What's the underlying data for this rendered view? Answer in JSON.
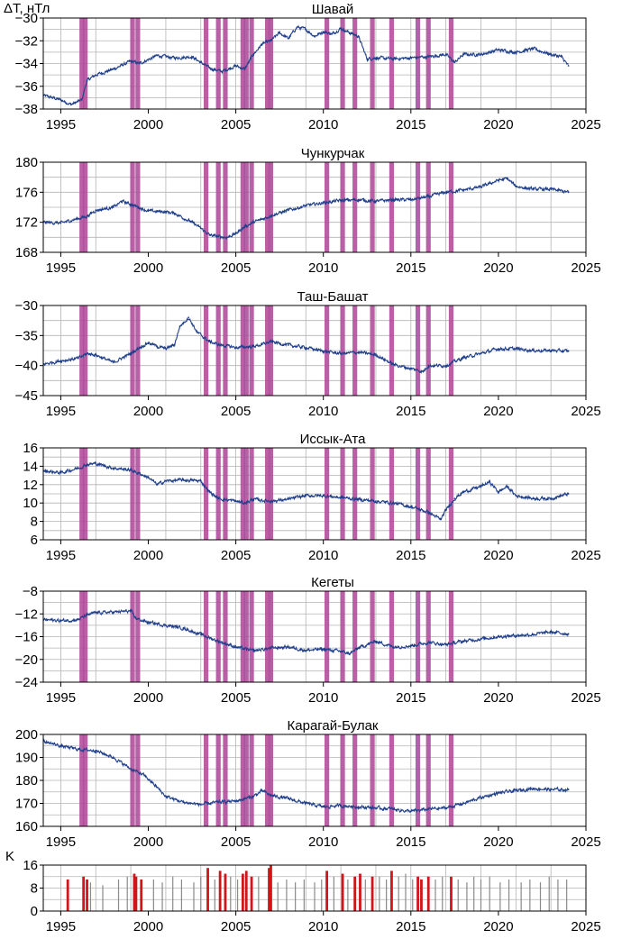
{
  "corner_labels": {
    "top": "ΔT, нТл",
    "bottom": "K"
  },
  "colors": {
    "series": "#1f3f8c",
    "storm_band": "#b04a9a",
    "k_normal": "#8a8a8a",
    "k_storm": "#d0151b",
    "grid": "#b4b4b4",
    "axis": "#000000"
  },
  "chart_data": [
    {
      "type": "line",
      "title": "Шавай",
      "xlim": [
        1994,
        2025
      ],
      "xticks": [
        1995,
        2000,
        2005,
        2010,
        2015,
        2020,
        2025
      ],
      "ylim": [
        -38,
        -30
      ],
      "yticks": [
        -38,
        -36,
        -34,
        -32,
        -30
      ],
      "grid": true,
      "series": [
        {
          "x": [
            1994.0,
            1995.0,
            1995.6,
            1996.2,
            1996.5,
            1997.0,
            1998.0,
            1999.0,
            1999.5,
            2000.5,
            2001.5,
            2002.5,
            2003.0,
            2003.5,
            2004.2,
            2005.0,
            2005.5,
            2006.0,
            2006.5,
            2007.0,
            2007.5,
            2008.0,
            2008.5,
            2009.0,
            2009.5,
            2010.0,
            2010.5,
            2011.0,
            2011.5,
            2012.0,
            2012.5,
            2013.0,
            2014.0,
            2015.0,
            2016.0,
            2017.0,
            2017.5,
            2018.0,
            2019.0,
            2020.0,
            2021.0,
            2022.0,
            2023.0,
            2023.6,
            2024.0
          ],
          "y": [
            -36.8,
            -37.2,
            -37.6,
            -37.2,
            -35.5,
            -35.0,
            -34.5,
            -33.8,
            -34.0,
            -33.3,
            -33.5,
            -33.4,
            -33.9,
            -34.4,
            -34.7,
            -34.2,
            -34.5,
            -33.2,
            -32.3,
            -32.0,
            -31.3,
            -31.8,
            -30.8,
            -31.0,
            -31.6,
            -31.2,
            -31.4,
            -30.9,
            -31.3,
            -31.6,
            -33.6,
            -33.5,
            -33.6,
            -33.5,
            -33.4,
            -33.2,
            -33.9,
            -33.2,
            -33.2,
            -32.8,
            -33.0,
            -32.7,
            -33.2,
            -33.4,
            -34.2
          ]
        }
      ]
    },
    {
      "type": "line",
      "title": "Чункурчак",
      "xlim": [
        1994,
        2025
      ],
      "xticks": [
        1995,
        2000,
        2005,
        2010,
        2015,
        2020,
        2025
      ],
      "ylim": [
        168,
        180
      ],
      "yticks": [
        168,
        172,
        176,
        180
      ],
      "grid": true,
      "series": [
        {
          "x": [
            1994.0,
            1995.0,
            1996.0,
            1996.5,
            1997.0,
            1998.0,
            1998.5,
            1999.0,
            2000.0,
            2001.0,
            2001.5,
            2002.5,
            2003.0,
            2003.5,
            2004.0,
            2004.5,
            2005.0,
            2005.5,
            2006.0,
            2006.5,
            2007.0,
            2008.0,
            2009.0,
            2010.0,
            2011.0,
            2012.0,
            2013.0,
            2014.0,
            2015.0,
            2015.5,
            2016.0,
            2017.0,
            2018.0,
            2019.0,
            2020.0,
            2020.5,
            2021.0,
            2022.0,
            2023.0,
            2024.0
          ],
          "y": [
            172.0,
            171.9,
            172.5,
            172.8,
            173.6,
            174.0,
            174.8,
            174.4,
            173.5,
            173.4,
            173.2,
            172.0,
            171.2,
            170.3,
            170.1,
            170.0,
            170.5,
            171.4,
            172.0,
            172.4,
            172.9,
            173.6,
            174.2,
            174.6,
            174.9,
            175.0,
            174.8,
            175.0,
            175.0,
            175.2,
            175.4,
            176.0,
            176.3,
            176.7,
            177.6,
            177.8,
            176.8,
            176.4,
            176.4,
            176.0
          ]
        }
      ]
    },
    {
      "type": "line",
      "title": "Таш-Башат",
      "xlim": [
        1994,
        2025
      ],
      "xticks": [
        1995,
        2000,
        2005,
        2010,
        2015,
        2020,
        2025
      ],
      "ylim": [
        -45,
        -30
      ],
      "yticks": [
        -45,
        -40,
        -35,
        -30
      ],
      "grid": true,
      "series": [
        {
          "x": [
            1994.0,
            1995.0,
            1996.0,
            1996.5,
            1997.0,
            1998.0,
            1999.0,
            1999.5,
            2000.0,
            2000.5,
            2001.0,
            2001.5,
            2001.8,
            2002.3,
            2002.8,
            2003.5,
            2004.0,
            2005.0,
            2006.0,
            2006.5,
            2007.0,
            2008.0,
            2009.0,
            2010.0,
            2011.0,
            2012.0,
            2013.0,
            2013.5,
            2014.0,
            2015.0,
            2015.7,
            2016.0,
            2017.0,
            2018.0,
            2019.0,
            2020.0,
            2021.0,
            2022.0,
            2023.0,
            2024.0
          ],
          "y": [
            -39.8,
            -39.2,
            -38.8,
            -38.0,
            -38.2,
            -39.5,
            -38.0,
            -37.0,
            -36.2,
            -36.8,
            -37.2,
            -36.5,
            -33.5,
            -32.0,
            -34.5,
            -36.0,
            -36.5,
            -37.0,
            -36.8,
            -36.5,
            -36.0,
            -36.6,
            -37.0,
            -37.6,
            -38.0,
            -37.8,
            -38.2,
            -39.0,
            -39.8,
            -40.5,
            -41.0,
            -40.0,
            -40.0,
            -38.7,
            -38.0,
            -37.2,
            -37.2,
            -37.5,
            -37.5,
            -37.6
          ]
        }
      ]
    },
    {
      "type": "line",
      "title": "Иссык-Ата",
      "xlim": [
        1994,
        2025
      ],
      "xticks": [
        1995,
        2000,
        2005,
        2010,
        2015,
        2020,
        2025
      ],
      "ylim": [
        6,
        16
      ],
      "yticks": [
        6,
        8,
        10,
        12,
        14,
        16
      ],
      "grid": true,
      "series": [
        {
          "x": [
            1994.0,
            1995.0,
            1996.0,
            1996.5,
            1997.0,
            1998.0,
            1999.0,
            2000.0,
            2000.5,
            2001.0,
            2002.0,
            2003.0,
            2003.5,
            2004.0,
            2005.0,
            2005.5,
            2006.0,
            2007.0,
            2008.0,
            2009.0,
            2010.0,
            2011.0,
            2012.0,
            2013.0,
            2014.0,
            2015.0,
            2016.0,
            2016.7,
            2017.0,
            2017.5,
            2018.0,
            2019.0,
            2019.5,
            2020.0,
            2020.5,
            2021.0,
            2022.0,
            2023.0,
            2024.0
          ],
          "y": [
            13.5,
            13.3,
            13.8,
            14.2,
            14.3,
            13.8,
            13.6,
            12.8,
            12.0,
            12.4,
            12.5,
            12.4,
            11.2,
            10.5,
            10.2,
            10.0,
            10.4,
            10.2,
            10.4,
            10.8,
            10.8,
            10.6,
            10.4,
            10.2,
            10.0,
            9.6,
            9.0,
            8.2,
            9.2,
            10.5,
            11.2,
            11.8,
            12.3,
            11.2,
            11.8,
            10.8,
            10.5,
            10.5,
            11.0
          ]
        }
      ]
    },
    {
      "type": "line",
      "title": "Кегеты",
      "xlim": [
        1994,
        2025
      ],
      "xticks": [
        1995,
        2000,
        2005,
        2010,
        2015,
        2020,
        2025
      ],
      "ylim": [
        -24,
        -8
      ],
      "yticks": [
        -24,
        -20,
        -16,
        -12,
        -8
      ],
      "grid": true,
      "series": [
        {
          "x": [
            1994.0,
            1995.0,
            1996.0,
            1996.5,
            1997.0,
            1998.0,
            1999.0,
            1999.3,
            2000.0,
            2001.0,
            2002.0,
            2003.0,
            2004.0,
            2005.0,
            2006.0,
            2007.0,
            2008.0,
            2009.0,
            2010.0,
            2011.0,
            2011.5,
            2012.0,
            2013.0,
            2014.0,
            2015.0,
            2016.0,
            2017.0,
            2018.0,
            2019.0,
            2020.0,
            2021.0,
            2022.0,
            2023.0,
            2024.0
          ],
          "y": [
            -13.0,
            -13.2,
            -13.0,
            -12.2,
            -11.8,
            -11.7,
            -11.5,
            -12.8,
            -13.5,
            -14.0,
            -14.5,
            -15.6,
            -16.8,
            -17.8,
            -18.5,
            -18.0,
            -17.8,
            -18.4,
            -18.2,
            -18.6,
            -19.0,
            -18.0,
            -16.8,
            -17.8,
            -17.6,
            -17.0,
            -17.4,
            -16.8,
            -16.4,
            -16.0,
            -15.8,
            -15.6,
            -15.2,
            -15.5
          ]
        }
      ]
    },
    {
      "type": "line",
      "title": "Карагай-Булак",
      "xlim": [
        1994,
        2025
      ],
      "xticks": [
        1995,
        2000,
        2005,
        2010,
        2015,
        2020,
        2025
      ],
      "ylim": [
        160,
        200
      ],
      "yticks": [
        160,
        170,
        180,
        190,
        200
      ],
      "grid": true,
      "series": [
        {
          "x": [
            1994.0,
            1995.0,
            1996.0,
            1997.0,
            1998.0,
            1999.0,
            1999.8,
            2000.5,
            2001.0,
            2002.0,
            2003.0,
            2004.0,
            2005.0,
            2006.0,
            2006.5,
            2007.0,
            2008.0,
            2009.0,
            2010.0,
            2011.0,
            2012.0,
            2013.0,
            2014.0,
            2015.0,
            2016.0,
            2017.0,
            2018.0,
            2019.0,
            2020.0,
            2021.0,
            2022.0,
            2023.0,
            2024.0
          ],
          "y": [
            197.0,
            195.0,
            193.5,
            193.0,
            190.0,
            185.0,
            182.0,
            177.0,
            173.0,
            170.5,
            169.5,
            170.5,
            171.0,
            173.0,
            175.5,
            173.5,
            172.0,
            170.0,
            168.5,
            169.0,
            168.5,
            168.0,
            167.5,
            166.5,
            167.5,
            168.0,
            170.0,
            172.5,
            174.5,
            175.5,
            176.5,
            176.0,
            176.0
          ]
        }
      ]
    },
    {
      "type": "bar",
      "title": "",
      "ylabel": "K",
      "xlim": [
        1994,
        2025
      ],
      "xticks": [
        1995,
        2000,
        2005,
        2010,
        2015,
        2020,
        2025
      ],
      "ylim": [
        0,
        16
      ],
      "yticks": [
        0,
        8,
        16
      ],
      "grid": true,
      "series": [
        {
          "x": [
            1995.4,
            1996.3,
            1996.5,
            1999.2,
            1999.3,
            1999.6,
            2003.4,
            2004.1,
            2004.4,
            2005.4,
            2005.6,
            2005.9,
            2006.9,
            2007.0,
            2010.2,
            2011.1,
            2011.8,
            2012.1,
            2012.8,
            2013.9,
            2015.4,
            2015.6,
            2016.0,
            2017.3
          ],
          "y": [
            11,
            12,
            11,
            13,
            12,
            11,
            15,
            14,
            13,
            13,
            14,
            12,
            15,
            16,
            14,
            13,
            12,
            13,
            12,
            14,
            12,
            11,
            12,
            12
          ]
        },
        {
          "x": [
            1996.7,
            1997.4,
            1998.3,
            1998.8,
            2000.3,
            2000.8,
            2001.4,
            2001.9,
            2002.6,
            2003.0,
            2003.8,
            2004.7,
            2005.1,
            2006.3,
            2007.4,
            2007.9,
            2008.4,
            2008.9,
            2009.5,
            2009.9,
            2010.6,
            2011.4,
            2012.4,
            2013.2,
            2013.6,
            2014.3,
            2014.7,
            2015.1,
            2016.4,
            2016.8,
            2017.7,
            2018.2,
            2018.6,
            2019.0,
            2019.5,
            2020.1,
            2020.6,
            2021.3,
            2021.8,
            2022.4,
            2022.9,
            2023.4,
            2023.9
          ],
          "y": [
            10,
            9,
            11,
            12,
            11,
            10,
            12,
            11,
            10,
            12,
            11,
            12,
            11,
            12,
            10,
            11,
            10,
            11,
            10,
            11,
            12,
            11,
            11,
            12,
            11,
            12,
            13,
            11,
            11,
            12,
            11,
            10,
            12,
            11,
            12,
            10,
            11,
            10,
            11,
            10,
            12,
            11,
            11
          ]
        }
      ]
    }
  ],
  "storm_bands": [
    1996.2,
    1996.4,
    1999.1,
    1999.4,
    2003.3,
    2004.0,
    2004.4,
    2005.4,
    2005.6,
    2005.9,
    2006.8,
    2007.0,
    2010.2,
    2011.1,
    2011.8,
    2012.8,
    2013.9,
    2015.4,
    2016.0,
    2017.3
  ]
}
